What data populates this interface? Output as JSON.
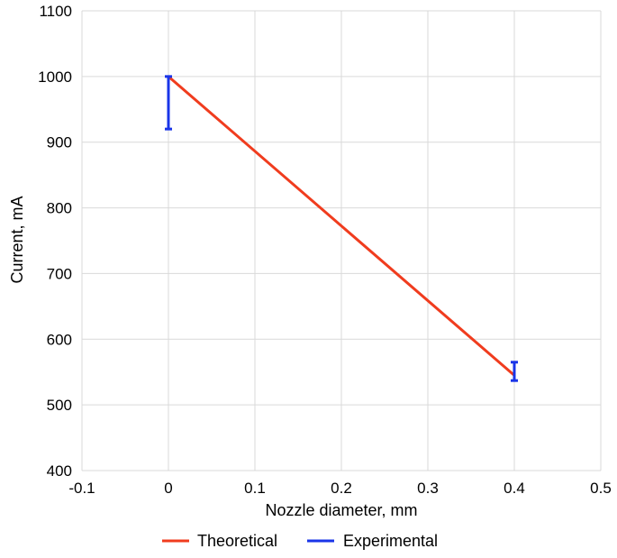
{
  "chart_data": {
    "type": "line",
    "xlabel": "Nozzle diameter,  mm",
    "ylabel": "Current,  mA",
    "xlim": [
      -0.1,
      0.5
    ],
    "ylim": [
      400,
      1100
    ],
    "xticks": [
      -0.1,
      0,
      0.1,
      0.2,
      0.3,
      0.4,
      0.5
    ],
    "xtick_labels": [
      "-0.1",
      "0",
      "0.1",
      "0.2",
      "0.3",
      "0.4",
      "0.5"
    ],
    "yticks": [
      400,
      500,
      600,
      700,
      800,
      900,
      1000,
      1100
    ],
    "ytick_labels": [
      "400",
      "500",
      "600",
      "700",
      "800",
      "900",
      "1000",
      "1100"
    ],
    "grid": true,
    "legend_position": "bottom-center",
    "series": [
      {
        "name": "Theoretical",
        "kind": "line",
        "color": "#f03c1e",
        "x": [
          0,
          0.4
        ],
        "y": [
          1000,
          545
        ]
      },
      {
        "name": "Experimental",
        "kind": "errorbar",
        "color": "#1a35e8",
        "x": [
          0,
          0.4
        ],
        "y_low": [
          920,
          537
        ],
        "y_high": [
          1000,
          565
        ]
      }
    ]
  }
}
